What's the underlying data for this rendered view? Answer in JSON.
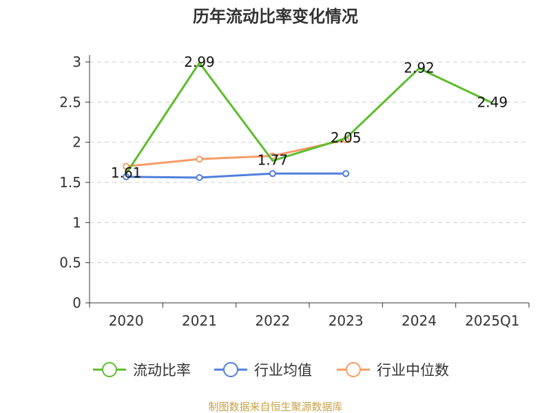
{
  "chart_data": {
    "type": "line",
    "title": "历年流动比率变化情况",
    "categories": [
      "2020",
      "2021",
      "2022",
      "2023",
      "2024",
      "2025Q1"
    ],
    "y_ticks": [
      "0",
      "0.5",
      "1",
      "1.5",
      "2",
      "2.5",
      "3"
    ],
    "ylim": [
      0,
      3
    ],
    "grid": true,
    "legend_position": "bottom",
    "series": [
      {
        "name": "流动比率",
        "color": "#5bbd2b",
        "values": [
          1.61,
          2.99,
          1.77,
          2.05,
          2.92,
          2.49
        ],
        "labels": [
          "1.61",
          "2.99",
          "1.77",
          "2.05",
          "2.92",
          "2.49"
        ],
        "show_labels": true,
        "show_markers": false
      },
      {
        "name": "行业均值",
        "color": "#4e7fdc",
        "values": [
          1.57,
          1.56,
          1.61,
          1.61,
          null,
          null
        ],
        "show_labels": false,
        "show_markers": true
      },
      {
        "name": "行业中位数",
        "color": "#f79b66",
        "values": [
          1.7,
          1.79,
          1.83,
          2.03,
          null,
          null
        ],
        "show_labels": false,
        "show_markers": true
      }
    ],
    "source": "制图数据来自恒生聚源数据库"
  }
}
